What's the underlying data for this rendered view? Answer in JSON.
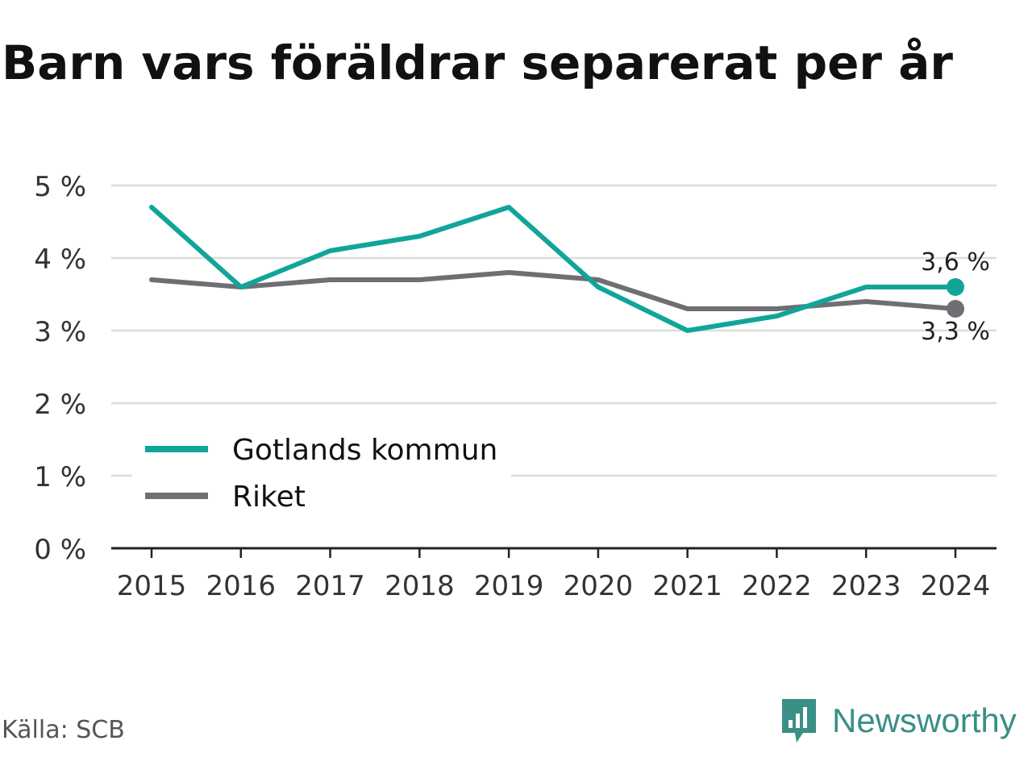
{
  "title": "Barn vars föräldrar separerat per år",
  "source": "Källa: SCB",
  "brand": {
    "name": "Newsworthy",
    "icon": "newsworthy-logo-icon",
    "color": "#3a8f86"
  },
  "chart_data": {
    "type": "line",
    "x": [
      "2015",
      "2016",
      "2017",
      "2018",
      "2019",
      "2020",
      "2021",
      "2022",
      "2023",
      "2024"
    ],
    "yticks": [
      "0 %",
      "1 %",
      "2 %",
      "3 %",
      "4 %",
      "5 %"
    ],
    "ylim": [
      0,
      5
    ],
    "grid": true,
    "legend_position": "bottom-left",
    "series": [
      {
        "name": "Gotlands kommun",
        "color": "#11a59a",
        "values": [
          4.7,
          3.6,
          4.1,
          4.3,
          4.7,
          3.6,
          3.0,
          3.2,
          3.6,
          3.6
        ],
        "end_label": "3,6 %"
      },
      {
        "name": "Riket",
        "color": "#6f6e75",
        "values": [
          3.7,
          3.6,
          3.7,
          3.7,
          3.8,
          3.7,
          3.3,
          3.3,
          3.4,
          3.3
        ],
        "end_label": "3,3 %"
      }
    ]
  }
}
